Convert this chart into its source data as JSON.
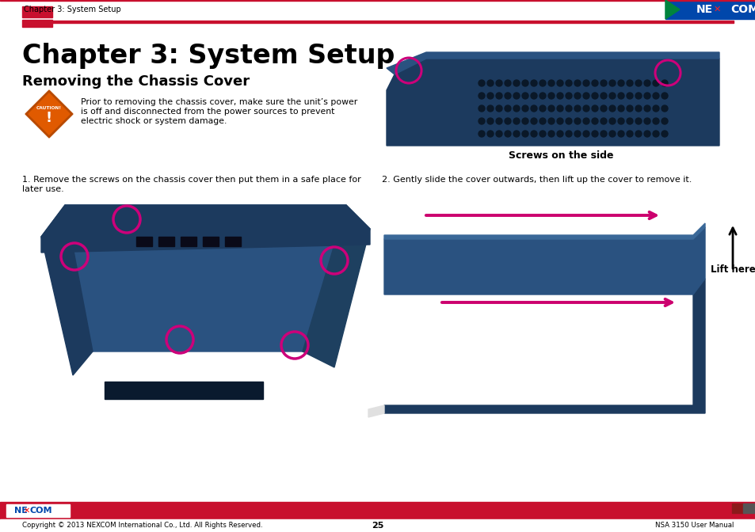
{
  "title": "Chapter 3: System Setup",
  "subtitle": "Removing the Chassis Cover",
  "header_text": "Chapter 3: System Setup",
  "caution_text_line1": "Prior to removing the chassis cover, make sure the unit’s power",
  "caution_text_line2": "is off and disconnected from the power sources to prevent",
  "caution_text_line3": "electric shock or system damage.",
  "step1_line1": "1. Remove the screws on the chassis cover then put them in a safe place for",
  "step1_line2": "later use.",
  "step2_text": "2. Gently slide the cover outwards, then lift up the cover to remove it.",
  "screws_label": "Screws on the side",
  "lift_label": "Lift here",
  "footer_left": "Copyright © 2013 NEXCOM International Co., Ltd. All Rights Reserved.",
  "footer_center": "25",
  "footer_right": "NSA 3150 User Manual",
  "bg_color": "#ffffff",
  "red_color": "#c8102e",
  "magenta_circle": "#cc007a",
  "text_color": "#000000",
  "chassis_dark": "#1c3a5e",
  "chassis_mid": "#2a5280",
  "chassis_light": "#3a6898",
  "nexcom_blue": "#0047ab",
  "arrow_pink": "#cc006e"
}
